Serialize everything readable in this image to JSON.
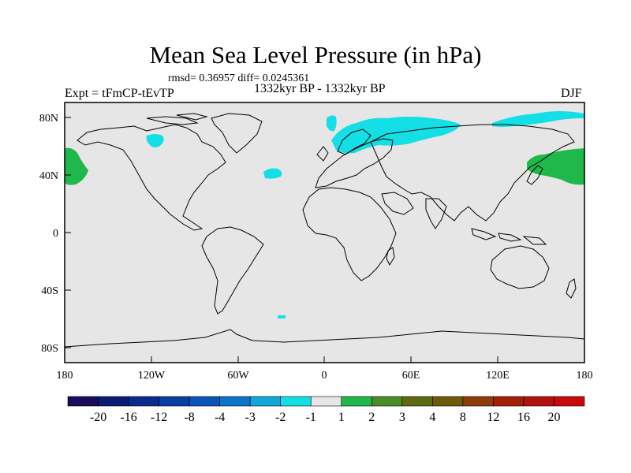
{
  "title": "Mean Sea Level Pressure (in hPa)",
  "stats_line": "rmsd= 0.36957 diff= 0.0245361",
  "experiment_label": "Expt = tFmCP-tEvTP",
  "period_label": "1332kyr BP - 1332kyr BP",
  "season_label": "DJF",
  "lat_ticks": [
    "80N",
    "40N",
    "0",
    "40S",
    "80S"
  ],
  "lon_ticks": [
    "180",
    "120W",
    "60W",
    "0",
    "60E",
    "120E",
    "180"
  ],
  "colorbar": {
    "labels": [
      "-20",
      "-16",
      "-12",
      "-8",
      "-4",
      "-3",
      "-2",
      "-1",
      "1",
      "2",
      "3",
      "4",
      "8",
      "12",
      "16",
      "20"
    ],
    "colors": [
      "#1c0a5c",
      "#0b1a73",
      "#0a2a8c",
      "#0a3ea4",
      "#0a55b8",
      "#0a74c8",
      "#10a8d8",
      "#14dfe6",
      "#e6e6e6",
      "#20b84a",
      "#4a8c28",
      "#5e6a10",
      "#6e5a08",
      "#8c3c08",
      "#a41e08",
      "#b41010",
      "#c80a0a"
    ]
  },
  "colors": {
    "background": "#e6e6e6",
    "negative_anomaly": "#14dfe6",
    "positive_anomaly": "#20b84a"
  }
}
